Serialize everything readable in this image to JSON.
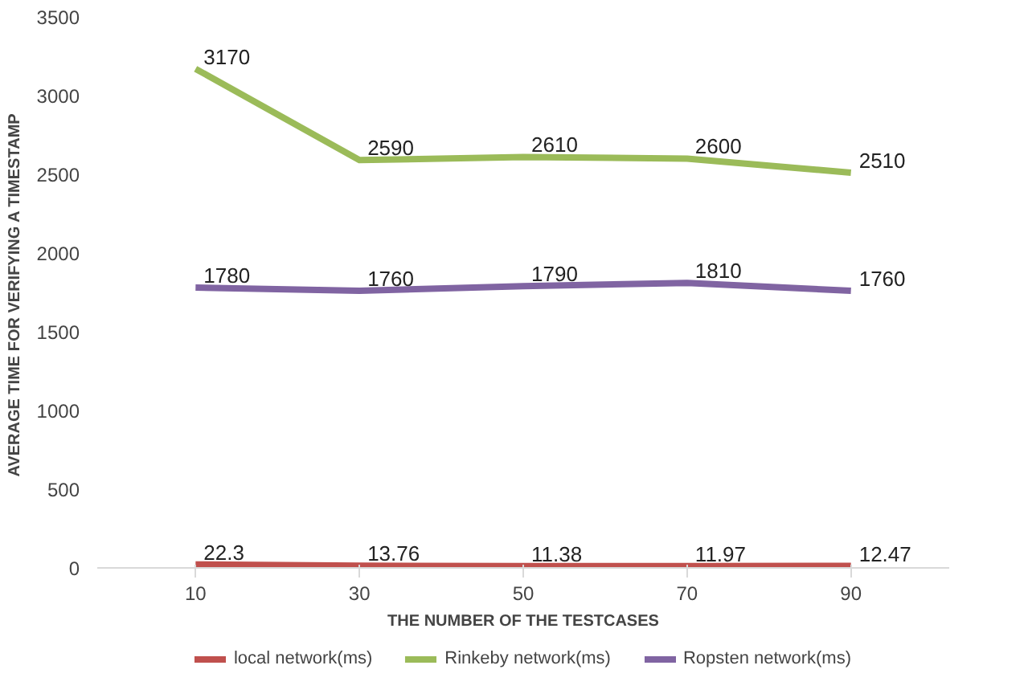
{
  "chart_data": {
    "type": "line",
    "xlabel": "THE NUMBER OF THE TESTCASES",
    "ylabel": "AVERAGE TIME FOR VERIFYING  A TIMESTAMP",
    "categories": [
      "10",
      "30",
      "50",
      "70",
      "90"
    ],
    "series": [
      {
        "name": "local network(ms)",
        "color": "#c0504d",
        "values": [
          22.3,
          13.76,
          11.38,
          11.97,
          12.47
        ]
      },
      {
        "name": "Rinkeby network(ms)",
        "color": "#9bbb59",
        "values": [
          3170,
          2590,
          2610,
          2600,
          2510
        ]
      },
      {
        "name": "Ropsten network(ms)",
        "color": "#8064a2",
        "values": [
          1780,
          1760,
          1790,
          1810,
          1760
        ]
      }
    ],
    "ylim": [
      0,
      3500
    ],
    "yticks": [
      0,
      500,
      1000,
      1500,
      2000,
      2500,
      3000,
      3500
    ],
    "grid": false,
    "legend": "bottom",
    "data_labels": true
  }
}
